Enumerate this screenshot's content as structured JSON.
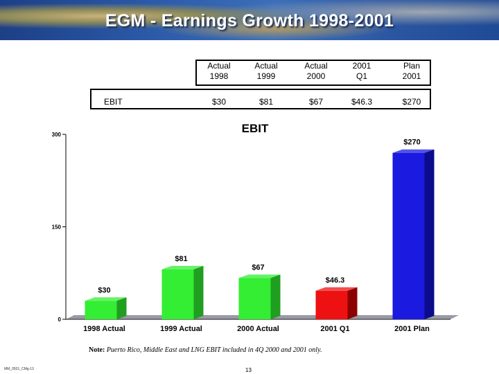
{
  "page": {
    "title": "EGM - Earnings Growth 1998-2001",
    "note_label": "Note:",
    "note_text": "Puerto Rico, Middle East and LNG EBIT included in 4Q 2000 and 2001 only.",
    "footer_id": "MM_0501_CMg-13",
    "page_number": "13"
  },
  "table": {
    "headers": [
      {
        "line1": "Actual",
        "line2": "1998"
      },
      {
        "line1": "Actual",
        "line2": "1999"
      },
      {
        "line1": "Actual",
        "line2": "2000"
      },
      {
        "line1": "2001",
        "line2": "Q1"
      },
      {
        "line1": "Plan",
        "line2": "2001"
      }
    ],
    "row_label": "EBIT",
    "values": [
      "$30",
      "$81",
      "$67",
      "$46.3",
      "$270"
    ]
  },
  "chart_data": {
    "type": "bar",
    "title": "EBIT",
    "categories": [
      "1998 Actual",
      "1999 Actual",
      "2000 Actual",
      "2001 Q1",
      "2001 Plan"
    ],
    "values": [
      30,
      81,
      67,
      46.3,
      270
    ],
    "data_labels": [
      "$30",
      "$81",
      "$67",
      "$46.3",
      "$270"
    ],
    "colors": [
      "#33ee33",
      "#33ee33",
      "#33ee33",
      "#ee1111",
      "#1a1ae0"
    ],
    "side_colors": [
      "#1f9e1f",
      "#1f9e1f",
      "#1f9e1f",
      "#8c0000",
      "#0b0b8c"
    ],
    "ylim": [
      0,
      300
    ],
    "yticks": [
      0,
      150,
      300
    ],
    "xlabel": "",
    "ylabel": ""
  }
}
